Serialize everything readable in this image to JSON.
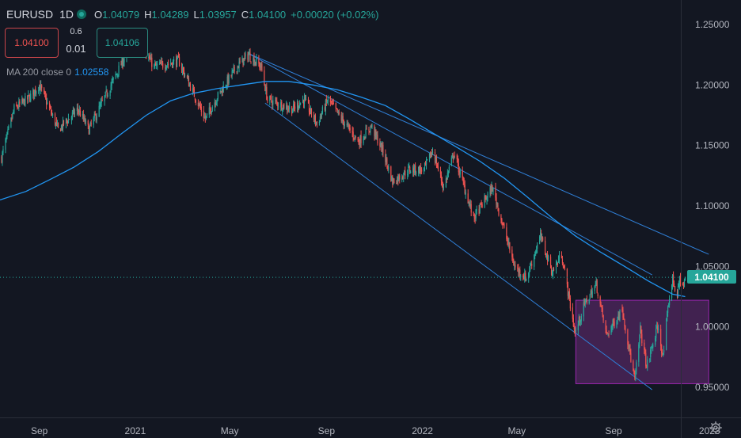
{
  "header": {
    "symbol": "EURUSD",
    "interval": "1D",
    "ohlc": {
      "o_label": "O",
      "o_value": "1.04079",
      "h_label": "H",
      "h_value": "1.04289",
      "l_label": "L",
      "l_value": "1.03957",
      "c_label": "C",
      "c_value": "1.04100",
      "change": "+0.00020 (+0.02%)"
    }
  },
  "trade_panel": {
    "sell_price": "1.04100",
    "spread_top": "0.6",
    "spread_bottom": "0.01",
    "buy_price": "1.04106"
  },
  "indicator": {
    "name": "MA 200 close 0",
    "value": "1.02558"
  },
  "last_price_badge": "1.04100",
  "colors": {
    "background": "#131722",
    "up": "#26a69a",
    "down": "#ef5350",
    "ma_line": "#2196f3",
    "trend_lines": "#2f7fd6",
    "box_fill": "#4a2558",
    "box_border": "#9c27b0"
  },
  "chart_data": {
    "type": "candlestick",
    "y_axis": {
      "ticks": [
        "1.25000",
        "1.20000",
        "1.15000",
        "1.10000",
        "1.05000",
        "1.00000",
        "0.95000"
      ],
      "tick_values": [
        1.25,
        1.2,
        1.15,
        1.1,
        1.05,
        1.0,
        0.95
      ],
      "range": [
        0.915,
        1.265
      ]
    },
    "x_axis": {
      "ticks": [
        "Sep",
        "2021",
        "May",
        "Sep",
        "2022",
        "May",
        "Sep",
        "2023"
      ],
      "tick_dates": [
        "2020-09-01",
        "2021-01-01",
        "2021-05-01",
        "2021-09-01",
        "2022-01-01",
        "2022-05-01",
        "2022-09-01",
        "2023-01-01"
      ],
      "range": [
        "2020-07-13",
        "2023-02-10"
      ]
    },
    "price_path": [
      [
        "2020-07-15",
        1.14
      ],
      [
        "2020-07-31",
        1.18
      ],
      [
        "2020-08-20",
        1.19
      ],
      [
        "2020-09-01",
        1.2
      ],
      [
        "2020-09-25",
        1.163
      ],
      [
        "2020-10-20",
        1.18
      ],
      [
        "2020-11-03",
        1.163
      ],
      [
        "2020-12-01",
        1.2
      ],
      [
        "2020-12-20",
        1.225
      ],
      [
        "2021-01-06",
        1.235
      ],
      [
        "2021-01-25",
        1.215
      ],
      [
        "2021-02-25",
        1.22
      ],
      [
        "2021-03-31",
        1.172
      ],
      [
        "2021-04-15",
        1.19
      ],
      [
        "2021-05-10",
        1.215
      ],
      [
        "2021-05-25",
        1.225
      ],
      [
        "2021-06-10",
        1.215
      ],
      [
        "2021-06-18",
        1.188
      ],
      [
        "2021-07-20",
        1.18
      ],
      [
        "2021-08-03",
        1.188
      ],
      [
        "2021-08-20",
        1.168
      ],
      [
        "2021-09-03",
        1.188
      ],
      [
        "2021-09-20",
        1.172
      ],
      [
        "2021-10-12",
        1.153
      ],
      [
        "2021-10-28",
        1.166
      ],
      [
        "2021-11-12",
        1.145
      ],
      [
        "2021-11-24",
        1.12
      ],
      [
        "2021-12-15",
        1.13
      ],
      [
        "2022-01-03",
        1.13
      ],
      [
        "2022-01-14",
        1.146
      ],
      [
        "2022-01-28",
        1.115
      ],
      [
        "2022-02-10",
        1.144
      ],
      [
        "2022-03-07",
        1.09
      ],
      [
        "2022-03-31",
        1.115
      ],
      [
        "2022-04-28",
        1.05
      ],
      [
        "2022-05-13",
        1.04
      ],
      [
        "2022-05-31",
        1.075
      ],
      [
        "2022-06-15",
        1.045
      ],
      [
        "2022-06-27",
        1.06
      ],
      [
        "2022-07-14",
        0.995
      ],
      [
        "2022-07-27",
        1.02
      ],
      [
        "2022-08-10",
        1.035
      ],
      [
        "2022-08-23",
        0.993
      ],
      [
        "2022-09-12",
        1.015
      ],
      [
        "2022-09-28",
        0.955
      ],
      [
        "2022-10-05",
        0.998
      ],
      [
        "2022-10-13",
        0.967
      ],
      [
        "2022-10-27",
        1.0
      ],
      [
        "2022-11-03",
        0.975
      ],
      [
        "2022-11-10",
        1.02
      ],
      [
        "2022-11-15",
        1.04
      ],
      [
        "2022-11-21",
        1.025
      ],
      [
        "2022-11-24",
        1.04
      ],
      [
        "2022-11-29",
        1.033
      ],
      [
        "2022-12-01",
        1.041
      ]
    ],
    "ma200": [
      [
        "2020-07-13",
        1.105
      ],
      [
        "2020-08-15",
        1.112
      ],
      [
        "2020-09-15",
        1.122
      ],
      [
        "2020-10-15",
        1.132
      ],
      [
        "2020-11-15",
        1.145
      ],
      [
        "2020-12-15",
        1.16
      ],
      [
        "2021-01-15",
        1.175
      ],
      [
        "2021-02-15",
        1.187
      ],
      [
        "2021-03-15",
        1.193
      ],
      [
        "2021-04-15",
        1.197
      ],
      [
        "2021-05-15",
        1.2
      ],
      [
        "2021-06-15",
        1.203
      ],
      [
        "2021-07-15",
        1.203
      ],
      [
        "2021-08-15",
        1.2
      ],
      [
        "2021-09-15",
        1.196
      ],
      [
        "2021-10-15",
        1.19
      ],
      [
        "2021-11-15",
        1.183
      ],
      [
        "2021-12-15",
        1.172
      ],
      [
        "2022-01-15",
        1.16
      ],
      [
        "2022-02-15",
        1.148
      ],
      [
        "2022-03-15",
        1.137
      ],
      [
        "2022-04-15",
        1.123
      ],
      [
        "2022-05-15",
        1.107
      ],
      [
        "2022-06-15",
        1.09
      ],
      [
        "2022-07-15",
        1.075
      ],
      [
        "2022-08-15",
        1.062
      ],
      [
        "2022-09-15",
        1.05
      ],
      [
        "2022-10-15",
        1.038
      ],
      [
        "2022-11-15",
        1.027
      ],
      [
        "2022-12-01",
        1.025
      ]
    ],
    "trend_lines": [
      {
        "from": [
          "2021-05-25",
          1.226
        ],
        "to": [
          "2022-12-31",
          1.06
        ]
      },
      {
        "from": [
          "2021-05-25",
          1.226
        ],
        "to": [
          "2022-10-20",
          1.043
        ]
      },
      {
        "from": [
          "2021-06-15",
          1.185
        ],
        "to": [
          "2022-10-20",
          0.948
        ]
      }
    ],
    "box": {
      "from": [
        "2022-07-15",
        1.022
      ],
      "to": [
        "2022-12-31",
        0.953
      ]
    },
    "last_price": 1.041,
    "grid": false
  }
}
